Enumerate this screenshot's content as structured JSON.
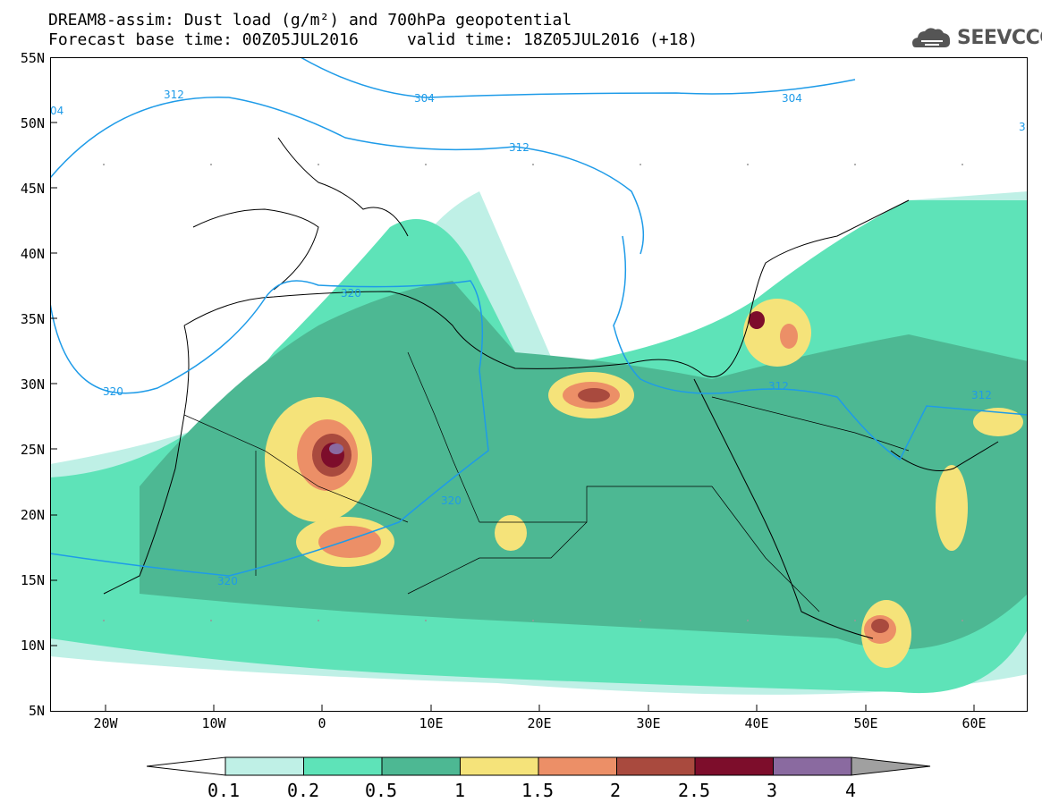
{
  "header": {
    "line1": "DREAM8-assim: Dust load (g/m²) and 700hPa geopotential",
    "line2_base": "Forecast base time: 00Z05JUL2016",
    "line2_valid": "valid time: 18Z05JUL2016 (+18)"
  },
  "logo": {
    "text": "SEEVCCC",
    "icon": "cloud-icon"
  },
  "axes": {
    "lat_labels": [
      "55N",
      "50N",
      "45N",
      "40N",
      "35N",
      "30N",
      "25N",
      "20N",
      "15N",
      "10N",
      "5N"
    ],
    "lon_labels": [
      "20W",
      "10W",
      "0",
      "10E",
      "20E",
      "30E",
      "40E",
      "50E",
      "60E"
    ]
  },
  "contours": {
    "color": "#1e9be8",
    "labels": [
      "312",
      "304",
      "304",
      "312",
      "320",
      "320",
      "320",
      "320",
      "312",
      "312",
      "3",
      "04"
    ]
  },
  "colorbar": {
    "colors": [
      "#ffffff",
      "#bff0e6",
      "#5ee3b8",
      "#4db893",
      "#f5e37a",
      "#ec8f67",
      "#a94a3e",
      "#7d0d2b",
      "#8a6aa0",
      "#a0a0a0"
    ],
    "labels": [
      "0.1",
      "0.2",
      "0.5",
      "1",
      "1.5",
      "2",
      "2.5",
      "3",
      "4"
    ]
  }
}
